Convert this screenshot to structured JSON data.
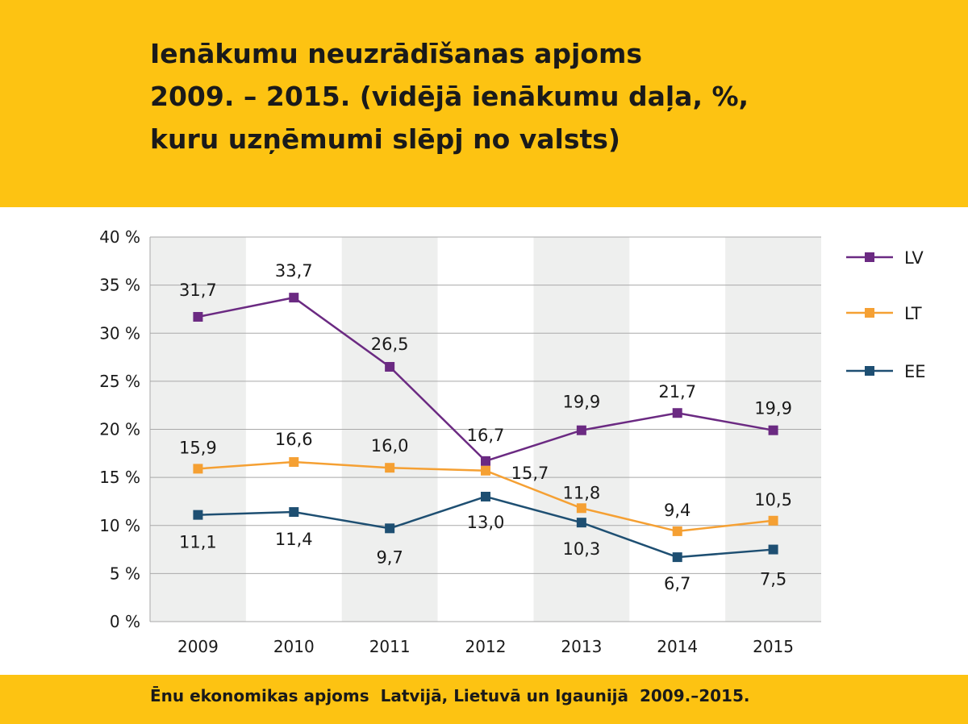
{
  "title": {
    "line1": "Ienākumu neuzrādīšanas apjoms",
    "line2": "2009. – 2015. (vidējā ienākumu daļa, %,",
    "line3": "kuru uzņēmumi slēpj no valsts)"
  },
  "footer": {
    "text": "Ēnu ekonomikas apjoms  Latvijā, Lietuvā un Igaunijā  2009.–2015."
  },
  "colors": {
    "background_band": "#fdc312",
    "LV": "#6b2a82",
    "LT": "#f5a033",
    "EE": "#1e4f72",
    "stripe": "#eeefee",
    "grid": "#a9a9a9"
  },
  "chart_data": {
    "type": "line",
    "title": "Ienākumu neuzrādīšanas apjoms 2009. – 2015. (vidējā ienākumu daļa, %, kuru uzņēmumi slēpj no valsts)",
    "xlabel": "",
    "ylabel": "",
    "categories": [
      "2009",
      "2010",
      "2011",
      "2012",
      "2013",
      "2014",
      "2015"
    ],
    "ylim": [
      0,
      40
    ],
    "yticks": [
      0,
      5,
      10,
      15,
      20,
      25,
      30,
      35,
      40
    ],
    "ytick_labels": [
      "0 %",
      "5 %",
      "10 %",
      "15 %",
      "20 %",
      "25 %",
      "30 %",
      "35 %",
      "40 %"
    ],
    "grid": true,
    "legend_position": "right",
    "series": [
      {
        "name": "LV",
        "color": "#6b2a82",
        "values": [
          31.7,
          33.7,
          26.5,
          16.7,
          19.9,
          21.7,
          19.9
        ],
        "labels": [
          "31,7",
          "33,7",
          "26,5",
          "16,7",
          "19,9",
          "21,7",
          "19,9"
        ]
      },
      {
        "name": "LT",
        "color": "#f5a033",
        "values": [
          15.9,
          16.6,
          16.0,
          15.7,
          11.8,
          9.4,
          10.5
        ],
        "labels": [
          "15,9",
          "16,6",
          "16,0",
          "15,7",
          "11,8",
          "9,4",
          "10,5"
        ]
      },
      {
        "name": "EE",
        "color": "#1e4f72",
        "values": [
          11.1,
          11.4,
          9.7,
          13.0,
          10.3,
          6.7,
          7.5
        ],
        "labels": [
          "11,1",
          "11,4",
          "9,7",
          "13,0",
          "10,3",
          "6,7",
          "7,5"
        ]
      }
    ]
  }
}
